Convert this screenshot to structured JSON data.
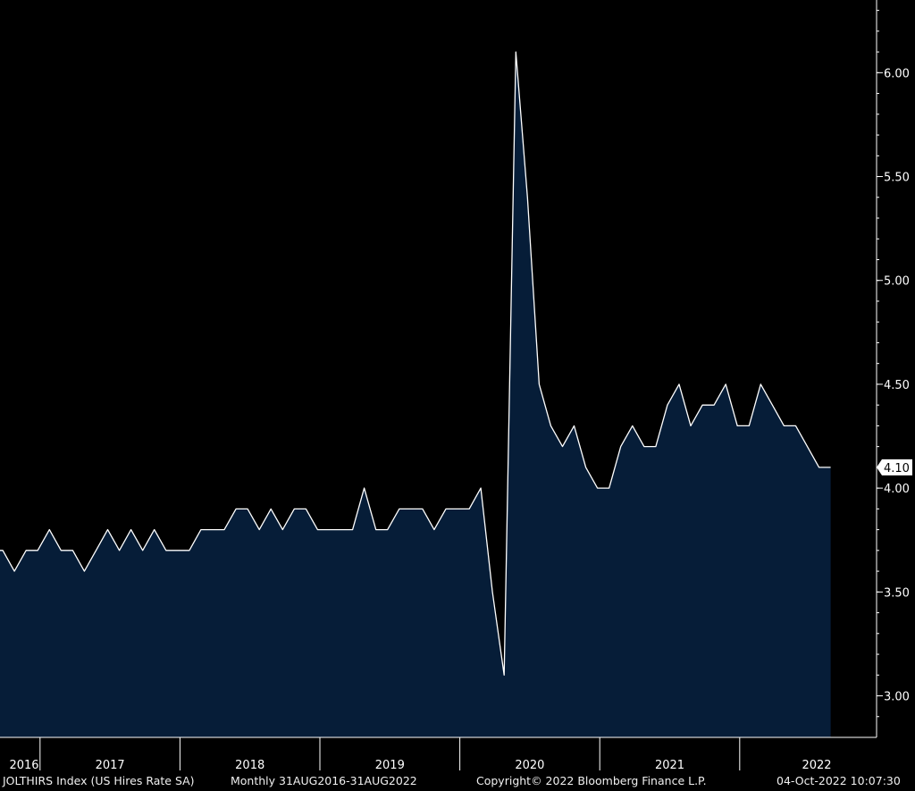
{
  "chart_data": {
    "type": "area",
    "ticker_label": "JOLTHIRS Index (US Hires Rate SA)",
    "range_label": "Monthly 31AUG2016-31AUG2022",
    "x_start": "2016-08",
    "x": [
      "2016-08",
      "2016-09",
      "2016-10",
      "2016-11",
      "2016-12",
      "2017-01",
      "2017-02",
      "2017-03",
      "2017-04",
      "2017-05",
      "2017-06",
      "2017-07",
      "2017-08",
      "2017-09",
      "2017-10",
      "2017-11",
      "2017-12",
      "2018-01",
      "2018-02",
      "2018-03",
      "2018-04",
      "2018-05",
      "2018-06",
      "2018-07",
      "2018-08",
      "2018-09",
      "2018-10",
      "2018-11",
      "2018-12",
      "2019-01",
      "2019-02",
      "2019-03",
      "2019-04",
      "2019-05",
      "2019-06",
      "2019-07",
      "2019-08",
      "2019-09",
      "2019-10",
      "2019-11",
      "2019-12",
      "2020-01",
      "2020-02",
      "2020-03",
      "2020-04",
      "2020-05",
      "2020-06",
      "2020-07",
      "2020-08",
      "2020-09",
      "2020-10",
      "2020-11",
      "2020-12",
      "2021-01",
      "2021-02",
      "2021-03",
      "2021-04",
      "2021-05",
      "2021-06",
      "2021-07",
      "2021-08",
      "2021-09",
      "2021-10",
      "2021-11",
      "2021-12",
      "2022-01",
      "2022-02",
      "2022-03",
      "2022-04",
      "2022-05",
      "2022-06",
      "2022-07",
      "2022-08"
    ],
    "values": [
      3.7,
      3.7,
      3.6,
      3.7,
      3.7,
      3.8,
      3.7,
      3.7,
      3.6,
      3.7,
      3.8,
      3.7,
      3.8,
      3.7,
      3.8,
      3.7,
      3.7,
      3.7,
      3.8,
      3.8,
      3.8,
      3.9,
      3.9,
      3.8,
      3.9,
      3.8,
      3.9,
      3.9,
      3.8,
      3.8,
      3.8,
      3.8,
      4.0,
      3.8,
      3.8,
      3.9,
      3.9,
      3.9,
      3.8,
      3.9,
      3.9,
      3.9,
      4.0,
      3.5,
      3.1,
      6.1,
      5.4,
      4.5,
      4.3,
      4.2,
      4.3,
      4.1,
      4.0,
      4.0,
      4.2,
      4.3,
      4.2,
      4.2,
      4.4,
      4.5,
      4.3,
      4.4,
      4.4,
      4.5,
      4.3,
      4.3,
      4.5,
      4.4,
      4.3,
      4.3,
      4.2,
      4.1,
      4.1
    ],
    "ylim": [
      2.8,
      6.35
    ],
    "yticks": [
      3.0,
      3.5,
      4.0,
      4.5,
      5.0,
      5.5,
      6.0
    ],
    "ytick_labels": [
      "3.00",
      "3.50",
      "4.00",
      "4.50",
      "5.00",
      "5.50",
      "6.00"
    ],
    "last_value_label": "4.10",
    "x_year_labels": [
      "2016",
      "2017",
      "2018",
      "2019",
      "2020",
      "2021",
      "2022"
    ],
    "grid": false,
    "colors": {
      "background": "#000000",
      "fill": "#061d38",
      "line": "#ffffff",
      "axis": "#ffffff",
      "tag_bg": "#ffffff",
      "tag_text": "#000000"
    }
  },
  "footer": {
    "ticker": "JOLTHIRS Index (US Hires Rate SA)",
    "range": "Monthly 31AUG2016-31AUG2022",
    "copyright": "Copyright© 2022 Bloomberg Finance L.P.",
    "timestamp": "04-Oct-2022 10:07:30"
  }
}
